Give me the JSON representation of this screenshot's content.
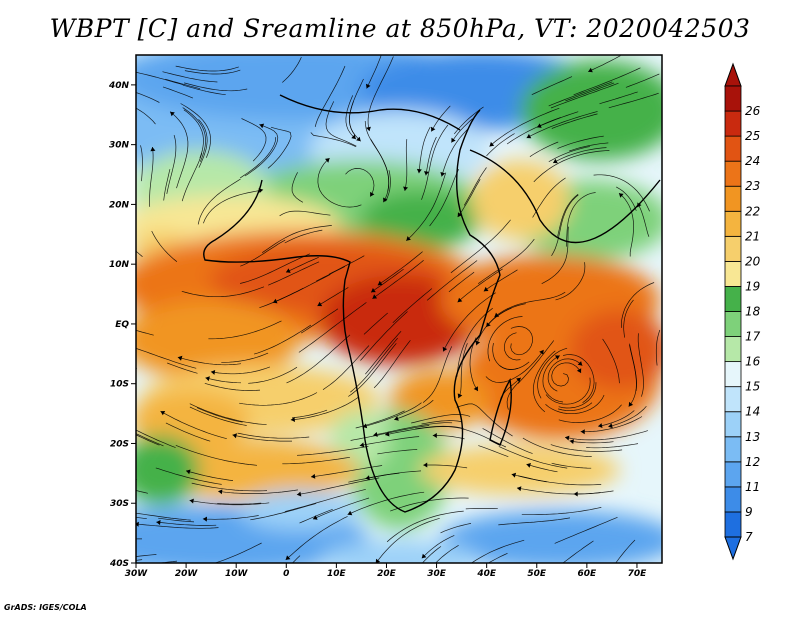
{
  "title": "WBPT [C] and Sreamline at 850hPa, VT: 2020042503",
  "credit": "GrADS: IGES/COLA",
  "map": {
    "lon_range": [
      -30,
      75
    ],
    "lat_range": [
      -40,
      45
    ],
    "lat_ticks": [
      {
        "value": 40,
        "label": "40N"
      },
      {
        "value": 30,
        "label": "30N"
      },
      {
        "value": 20,
        "label": "20N"
      },
      {
        "value": 10,
        "label": "10N"
      },
      {
        "value": 0,
        "label": "EQ"
      },
      {
        "value": -10,
        "label": "10S"
      },
      {
        "value": -20,
        "label": "20S"
      },
      {
        "value": -30,
        "label": "30S"
      },
      {
        "value": -40,
        "label": "40S"
      }
    ],
    "lon_ticks": [
      {
        "value": -30,
        "label": "30W"
      },
      {
        "value": -20,
        "label": "20W"
      },
      {
        "value": -10,
        "label": "10W"
      },
      {
        "value": 0,
        "label": "0"
      },
      {
        "value": 10,
        "label": "10E"
      },
      {
        "value": 20,
        "label": "20E"
      },
      {
        "value": 30,
        "label": "30E"
      },
      {
        "value": 40,
        "label": "40E"
      },
      {
        "value": 50,
        "label": "50E"
      },
      {
        "value": 60,
        "label": "60E"
      },
      {
        "value": 70,
        "label": "70E"
      }
    ]
  },
  "colorbar": {
    "levels": [
      "7",
      "9",
      "11",
      "12",
      "13",
      "14",
      "15",
      "16",
      "17",
      "18",
      "19",
      "20",
      "21",
      "22",
      "23",
      "24",
      "25",
      "26"
    ],
    "colors": [
      "#1e6fe0",
      "#3d8ce8",
      "#5ca5ef",
      "#7bbcf4",
      "#9cd1f8",
      "#c0e4fb",
      "#e6f6fb",
      "#b6e8a8",
      "#7ed17a",
      "#45b14a",
      "#f8e794",
      "#f6cf6c",
      "#f4b43f",
      "#f19522",
      "#ec7418",
      "#e15413",
      "#c92a0f",
      "#a8120a"
    ]
  }
}
